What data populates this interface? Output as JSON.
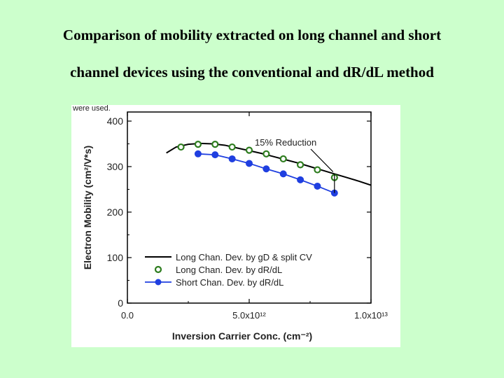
{
  "slide": {
    "title_line1": "Comparison of mobility extracted on long channel and short",
    "title_line2": "channel devices using the conventional and dR/dL method",
    "background_color": "#ccffcc"
  },
  "chart_data": {
    "type": "line",
    "cropped_caption": "were used.",
    "xlabel": "Inversion Carrier Conc. (cm⁻²)",
    "ylabel": "Electron Mobility (cm²/V*s)",
    "xlim": [
      0,
      10000000000000.0
    ],
    "ylim": [
      0,
      420
    ],
    "x_ticks": [
      {
        "value": 0,
        "label": "0.0"
      },
      {
        "value": 5000000000000.0,
        "label": "5.0x10¹²"
      },
      {
        "value": 10000000000000.0,
        "label": "1.0x10¹³"
      }
    ],
    "y_ticks": [
      0,
      100,
      200,
      300,
      400
    ],
    "annotation": {
      "text": "15% Reduction",
      "x": 8500000000000.0
    },
    "series": [
      {
        "name": "Long Chan. Dev. by gD & split CV",
        "style": "solid-line",
        "color": "#000000",
        "x": [
          1600000000000.0,
          2000000000000.0,
          2500000000000.0,
          3000000000000.0,
          3500000000000.0,
          4000000000000.0,
          4500000000000.0,
          5000000000000.0,
          5500000000000.0,
          6000000000000.0,
          6500000000000.0,
          7000000000000.0,
          7500000000000.0,
          8000000000000.0,
          8500000000000.0,
          9000000000000.0,
          9500000000000.0,
          10400000000000.0
        ],
        "y": [
          330,
          343,
          349,
          351,
          350,
          347,
          341,
          335,
          329,
          322,
          315,
          308,
          300,
          292,
          284,
          276,
          268,
          252
        ]
      },
      {
        "name": "Long Chan. Dev. by dR/dL",
        "style": "open-circle",
        "color": "#2e7d1f",
        "x": [
          2200000000000.0,
          2900000000000.0,
          3600000000000.0,
          4300000000000.0,
          5000000000000.0,
          5700000000000.0,
          6400000000000.0,
          7100000000000.0,
          7800000000000.0,
          8500000000000.0
        ],
        "y": [
          343,
          349,
          349,
          343,
          336,
          328,
          317,
          304,
          293,
          276
        ]
      },
      {
        "name": "Short Chan. Dev. by dR/dL",
        "style": "filled-circle-line",
        "color": "#1f3fe0",
        "x": [
          2900000000000.0,
          3600000000000.0,
          4300000000000.0,
          5000000000000.0,
          5700000000000.0,
          6400000000000.0,
          7100000000000.0,
          7800000000000.0,
          8500000000000.0
        ],
        "y": [
          328,
          326,
          317,
          307,
          295,
          284,
          271,
          257,
          242
        ]
      }
    ],
    "legend_position": "bottom-left",
    "grid": false
  }
}
